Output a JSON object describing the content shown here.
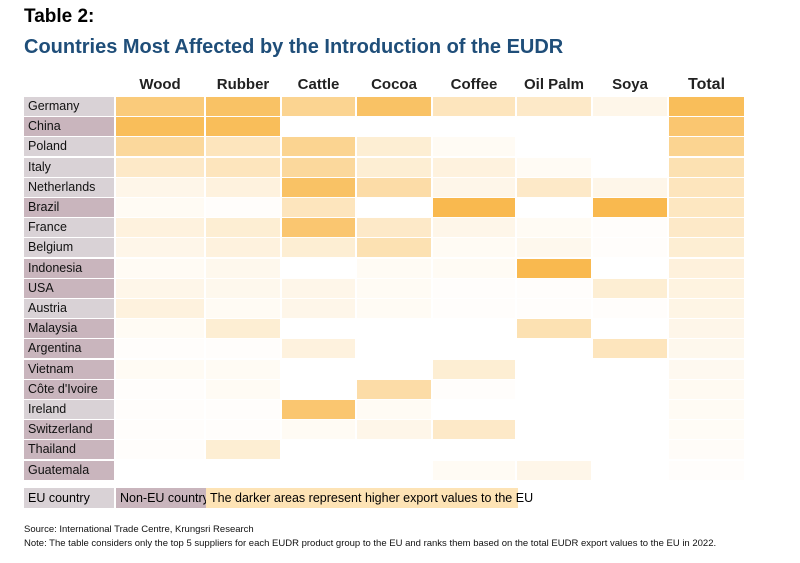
{
  "header": {
    "table_label": "Table 2:",
    "title": "Countries Most Affected by the Introduction of the EUDR"
  },
  "chart_data": {
    "type": "heatmap",
    "columns": [
      "Wood",
      "Rubber",
      "Cattle",
      "Cocoa",
      "Coffee",
      "Oil Palm",
      "Soya",
      "Total"
    ],
    "rows": [
      {
        "label": "Germany",
        "group": "eu",
        "values": [
          0.6,
          0.7,
          0.5,
          0.7,
          0.3,
          0.25,
          0.1,
          0.75
        ]
      },
      {
        "label": "China",
        "group": "noneu",
        "values": [
          0.75,
          0.75,
          0,
          0,
          0,
          0,
          0,
          0.65
        ]
      },
      {
        "label": "Poland",
        "group": "eu",
        "values": [
          0.45,
          0.3,
          0.5,
          0.2,
          0.05,
          0,
          0,
          0.5
        ]
      },
      {
        "label": "Italy",
        "group": "eu",
        "values": [
          0.25,
          0.3,
          0.45,
          0.2,
          0.15,
          0.05,
          0,
          0.35
        ]
      },
      {
        "label": "Netherlands",
        "group": "eu",
        "values": [
          0.1,
          0.15,
          0.7,
          0.4,
          0.1,
          0.25,
          0.1,
          0.3
        ]
      },
      {
        "label": "Brazil",
        "group": "noneu",
        "values": [
          0.05,
          0.02,
          0.3,
          0,
          0.8,
          0,
          0.8,
          0.28
        ]
      },
      {
        "label": "France",
        "group": "eu",
        "values": [
          0.15,
          0.2,
          0.65,
          0.25,
          0.1,
          0.05,
          0.02,
          0.25
        ]
      },
      {
        "label": "Belgium",
        "group": "eu",
        "values": [
          0.1,
          0.15,
          0.2,
          0.35,
          0.05,
          0.08,
          0.02,
          0.2
        ]
      },
      {
        "label": "Indonesia",
        "group": "noneu",
        "values": [
          0.05,
          0.08,
          0,
          0.05,
          0.05,
          0.8,
          0,
          0.16
        ]
      },
      {
        "label": "USA",
        "group": "noneu",
        "values": [
          0.1,
          0.08,
          0.1,
          0.05,
          0.02,
          0.02,
          0.2,
          0.14
        ]
      },
      {
        "label": "Austria",
        "group": "eu",
        "values": [
          0.15,
          0.05,
          0.1,
          0.05,
          0.02,
          0.02,
          0.02,
          0.12
        ]
      },
      {
        "label": "Malaysia",
        "group": "noneu",
        "values": [
          0.05,
          0.2,
          0,
          0,
          0,
          0.35,
          0,
          0.1
        ]
      },
      {
        "label": "Argentina",
        "group": "noneu",
        "values": [
          0.02,
          0.02,
          0.15,
          0,
          0,
          0,
          0.3,
          0.08
        ]
      },
      {
        "label": "Vietnam",
        "group": "noneu",
        "values": [
          0.05,
          0.05,
          0,
          0,
          0.2,
          0,
          0,
          0.07
        ]
      },
      {
        "label": "Côte d'Ivoire",
        "group": "noneu",
        "values": [
          0.02,
          0.05,
          0,
          0.4,
          0.02,
          0,
          0,
          0.06
        ]
      },
      {
        "label": "Ireland",
        "group": "eu",
        "values": [
          0.02,
          0.02,
          0.65,
          0.05,
          0,
          0,
          0,
          0.05
        ]
      },
      {
        "label": "Switzerland",
        "group": "noneu",
        "values": [
          0.02,
          0.02,
          0.05,
          0.1,
          0.25,
          0,
          0,
          0.04
        ]
      },
      {
        "label": "Thailand",
        "group": "noneu",
        "values": [
          0.02,
          0.2,
          0,
          0,
          0,
          0,
          0,
          0.03
        ]
      },
      {
        "label": "Guatemala",
        "group": "noneu",
        "values": [
          0,
          0,
          0,
          0,
          0.05,
          0.1,
          0,
          0.02
        ]
      }
    ],
    "color_low": "#ffffff",
    "color_high": "#f7a823"
  },
  "legend": {
    "eu": "EU country",
    "noneu": "Non-EU country",
    "note": "The darker areas represent higher export values to the EU"
  },
  "footer": {
    "source": "Source: International Trade Centre, Krungsri Research",
    "note": "Note: The table considers only the top 5 suppliers for each EUDR product group to the EU and ranks them based on the total EUDR export values to the EU in 2022."
  }
}
